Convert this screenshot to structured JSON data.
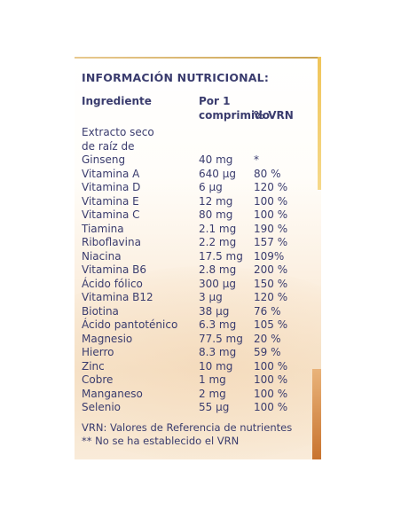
{
  "title": "INFORMACIÓN NUTRICIONAL:",
  "headers": {
    "ingredient": "Ingrediente",
    "per_line1": "Por 1",
    "per_line2": "comprimido",
    "vrn": "% VRN"
  },
  "intro_lines": [
    "Extracto seco",
    "de raíz de"
  ],
  "rows": [
    {
      "name": "Ginseng",
      "amount": "40 mg",
      "vrn": "*"
    },
    {
      "name": "Vitamina A",
      "amount": "640 µg",
      "vrn": "80 %"
    },
    {
      "name": "Vitamina D",
      "amount": "6 µg",
      "vrn": "120 %"
    },
    {
      "name": "Vitamina E",
      "amount": "12 mg",
      "vrn": "100 %"
    },
    {
      "name": "Vitamina C",
      "amount": "80 mg",
      "vrn": "100 %"
    },
    {
      "name": "Tiamina",
      "amount": "2.1 mg",
      "vrn": "190 %"
    },
    {
      "name": "Riboflavina",
      "amount": "2.2 mg",
      "vrn": "157 %"
    },
    {
      "name": "Niacina",
      "amount": "17.5 mg",
      "vrn": "109%"
    },
    {
      "name": "Vitamina B6",
      "amount": "2.8 mg",
      "vrn": "200 %"
    },
    {
      "name": "Ácido fólico",
      "amount": "300 µg",
      "vrn": "150 %"
    },
    {
      "name": "Vitamina B12",
      "amount": "3 µg",
      "vrn": "120 %"
    },
    {
      "name": "Biotina",
      "amount": "38 µg",
      "vrn": "76 %"
    },
    {
      "name": "Ácido pantoténico",
      "amount": "6.3 mg",
      "vrn": "105 %"
    },
    {
      "name": "Magnesio",
      "amount": "77.5 mg",
      "vrn": "20 %"
    },
    {
      "name": "Hierro",
      "amount": "8.3 mg",
      "vrn": "59 %"
    },
    {
      "name": "Zinc",
      "amount": "10 mg",
      "vrn": "100 %"
    },
    {
      "name": "Cobre",
      "amount": "1 mg",
      "vrn": "100 %"
    },
    {
      "name": "Manganeso",
      "amount": "2 mg",
      "vrn": "100 %"
    },
    {
      "name": "Selenio",
      "amount": "55 µg",
      "vrn": "100 %"
    }
  ],
  "notes": [
    "VRN: Valores de Referencia de nutrientes",
    "** No se ha establecido el VRN"
  ],
  "colors": {
    "text": "#3a3c6e",
    "accent_gold": "#f0c55a",
    "accent_orange": "#c8732e"
  }
}
